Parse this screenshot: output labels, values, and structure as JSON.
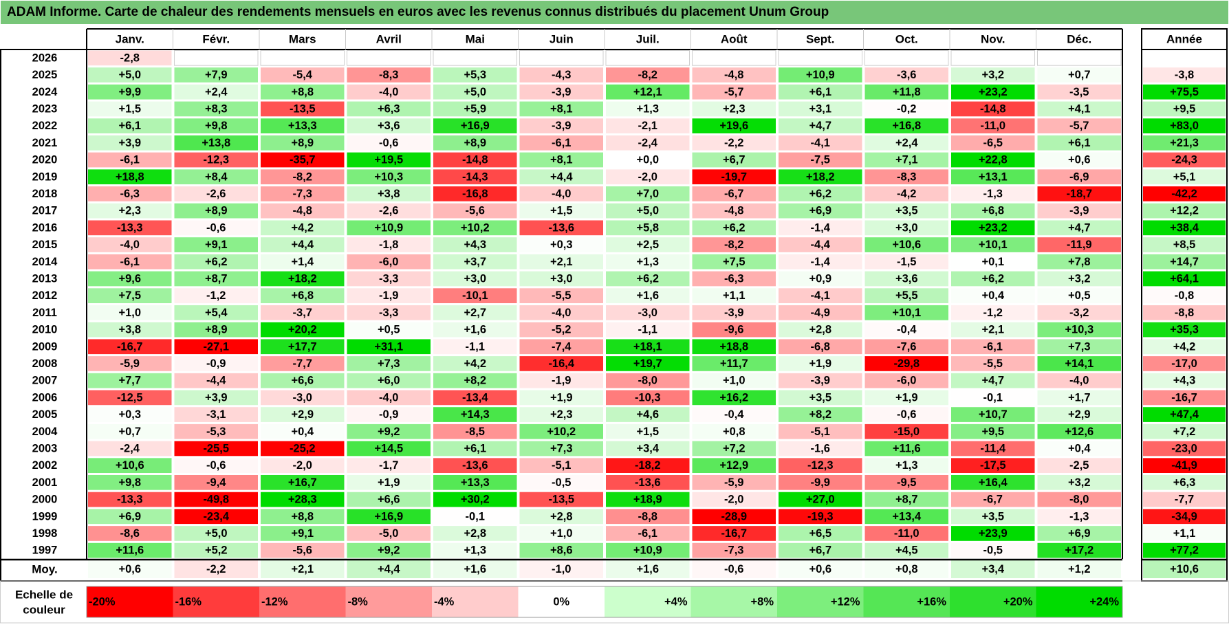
{
  "title": "ADAM Informe. Carte de chaleur des rendements mensuels en euros avec les revenus connus distribués du placement Unum Group",
  "chart_data": {
    "type": "heatmap",
    "title": "ADAM Informe. Carte de chaleur des rendements mensuels en euros avec les revenus connus distribués du placement Unum Group",
    "months": [
      "Janv.",
      "Févr.",
      "Mars",
      "Avril",
      "Mai",
      "Juin",
      "Juil.",
      "Août",
      "Sept.",
      "Oct.",
      "Nov.",
      "Déc."
    ],
    "year_col_label": "Année",
    "avg_label": "Moy.",
    "rows": [
      {
        "year": "2026",
        "values": [
          "-2,8",
          "",
          "",
          "",
          "",
          "",
          "",
          "",
          "",
          "",
          "",
          ""
        ],
        "annual": ""
      },
      {
        "year": "2025",
        "values": [
          "+5,0",
          "+7,9",
          "-5,4",
          "-8,3",
          "+5,3",
          "-4,3",
          "-8,2",
          "-4,8",
          "+10,9",
          "-3,6",
          "+3,2",
          "+0,7"
        ],
        "annual": "-3,8"
      },
      {
        "year": "2024",
        "values": [
          "+9,9",
          "+2,4",
          "+8,8",
          "-4,0",
          "+5,0",
          "-3,9",
          "+12,1",
          "-5,7",
          "+6,1",
          "+11,8",
          "+23,2",
          "-3,5"
        ],
        "annual": "+75,5"
      },
      {
        "year": "2023",
        "values": [
          "+1,5",
          "+8,3",
          "-13,5",
          "+6,3",
          "+5,9",
          "+8,1",
          "+1,3",
          "+2,3",
          "+3,1",
          "-0,2",
          "-14,8",
          "+4,1"
        ],
        "annual": "+9,5"
      },
      {
        "year": "2022",
        "values": [
          "+6,1",
          "+9,8",
          "+13,3",
          "+3,6",
          "+16,9",
          "-3,9",
          "-2,1",
          "+19,6",
          "+4,7",
          "+16,8",
          "-11,0",
          "-5,7"
        ],
        "annual": "+83,0"
      },
      {
        "year": "2021",
        "values": [
          "+3,9",
          "+13,8",
          "+8,9",
          "-0,6",
          "+8,9",
          "-6,1",
          "-2,4",
          "-2,2",
          "-4,1",
          "+2,4",
          "-6,5",
          "+6,1"
        ],
        "annual": "+21,3"
      },
      {
        "year": "2020",
        "values": [
          "-6,1",
          "-12,3",
          "-35,7",
          "+19,5",
          "-14,8",
          "+8,1",
          "+0,0",
          "+6,7",
          "-7,5",
          "+7,1",
          "+22,8",
          "+0,6"
        ],
        "annual": "-24,3"
      },
      {
        "year": "2019",
        "values": [
          "+18,8",
          "+8,4",
          "-8,2",
          "+10,3",
          "-14,3",
          "+4,4",
          "-2,0",
          "-19,7",
          "+18,2",
          "-8,3",
          "+13,1",
          "-6,9"
        ],
        "annual": "+5,1"
      },
      {
        "year": "2018",
        "values": [
          "-6,3",
          "-2,6",
          "-7,3",
          "+3,8",
          "-16,8",
          "-4,0",
          "+7,0",
          "-6,7",
          "+6,2",
          "-4,2",
          "-1,3",
          "-18,7"
        ],
        "annual": "-42,2"
      },
      {
        "year": "2017",
        "values": [
          "+2,3",
          "+8,9",
          "-4,8",
          "-2,6",
          "-5,6",
          "+1,5",
          "+5,0",
          "-4,8",
          "+6,9",
          "+3,5",
          "+6,8",
          "-3,9"
        ],
        "annual": "+12,2"
      },
      {
        "year": "2016",
        "values": [
          "-13,3",
          "-0,6",
          "+4,2",
          "+10,9",
          "+10,2",
          "-13,6",
          "+5,8",
          "+6,2",
          "-1,4",
          "+3,0",
          "+23,2",
          "+4,7"
        ],
        "annual": "+38,4"
      },
      {
        "year": "2015",
        "values": [
          "-4,0",
          "+9,1",
          "+4,4",
          "-1,8",
          "+4,3",
          "+0,3",
          "+2,5",
          "-8,2",
          "-4,4",
          "+10,6",
          "+10,1",
          "-11,9"
        ],
        "annual": "+8,5"
      },
      {
        "year": "2014",
        "values": [
          "-6,1",
          "+6,2",
          "+1,4",
          "-6,0",
          "+3,7",
          "+2,1",
          "+1,3",
          "+7,5",
          "-1,4",
          "-1,5",
          "+0,1",
          "+7,8"
        ],
        "annual": "+14,7"
      },
      {
        "year": "2013",
        "values": [
          "+9,6",
          "+8,7",
          "+18,2",
          "-3,3",
          "+3,0",
          "+3,0",
          "+6,2",
          "-6,3",
          "+0,9",
          "+3,6",
          "+6,2",
          "+3,2"
        ],
        "annual": "+64,1"
      },
      {
        "year": "2012",
        "values": [
          "+7,5",
          "-1,2",
          "+6,8",
          "-1,9",
          "-10,1",
          "-5,5",
          "+1,6",
          "+1,1",
          "-4,1",
          "+5,5",
          "+0,4",
          "+0,5"
        ],
        "annual": "-0,8"
      },
      {
        "year": "2011",
        "values": [
          "+1,0",
          "+5,4",
          "-3,7",
          "-3,3",
          "+2,7",
          "-4,0",
          "-3,0",
          "-3,9",
          "-4,9",
          "+10,1",
          "-1,2",
          "-3,2"
        ],
        "annual": "-8,8"
      },
      {
        "year": "2010",
        "values": [
          "+3,8",
          "+8,9",
          "+20,2",
          "+0,5",
          "+1,6",
          "-5,2",
          "-1,1",
          "-9,6",
          "+2,8",
          "-0,4",
          "+2,1",
          "+10,3"
        ],
        "annual": "+35,3"
      },
      {
        "year": "2009",
        "values": [
          "-16,7",
          "-27,1",
          "+17,7",
          "+31,1",
          "-1,1",
          "-7,4",
          "+18,1",
          "+18,8",
          "-6,8",
          "-7,6",
          "-6,1",
          "+7,3"
        ],
        "annual": "+4,2"
      },
      {
        "year": "2008",
        "values": [
          "-5,9",
          "-0,9",
          "-7,7",
          "+7,3",
          "+4,2",
          "-16,4",
          "+19,7",
          "+11,7",
          "+1,9",
          "-29,8",
          "-5,5",
          "+14,1"
        ],
        "annual": "-17,0"
      },
      {
        "year": "2007",
        "values": [
          "+7,7",
          "-4,4",
          "+6,6",
          "+6,0",
          "+8,2",
          "-1,9",
          "-8,0",
          "+1,0",
          "-3,9",
          "-6,0",
          "+4,7",
          "-4,0"
        ],
        "annual": "+4,3"
      },
      {
        "year": "2006",
        "values": [
          "-12,5",
          "+3,9",
          "-3,0",
          "-4,0",
          "-13,4",
          "+1,9",
          "-10,3",
          "+16,2",
          "+3,5",
          "+1,9",
          "-0,1",
          "+1,7"
        ],
        "annual": "-16,7"
      },
      {
        "year": "2005",
        "values": [
          "+0,3",
          "-3,1",
          "+2,9",
          "-0,9",
          "+14,3",
          "+2,3",
          "+4,6",
          "-0,4",
          "+8,2",
          "-0,6",
          "+10,7",
          "+2,9"
        ],
        "annual": "+47,4"
      },
      {
        "year": "2004",
        "values": [
          "+0,7",
          "-5,3",
          "+0,4",
          "+9,2",
          "-8,5",
          "+10,2",
          "+1,5",
          "+0,8",
          "-5,1",
          "-15,0",
          "+9,5",
          "+12,6"
        ],
        "annual": "+7,2"
      },
      {
        "year": "2003",
        "values": [
          "-2,4",
          "-25,5",
          "-25,2",
          "+14,5",
          "+6,1",
          "+7,3",
          "+3,4",
          "+7,2",
          "-1,6",
          "+11,6",
          "-11,4",
          "+0,4"
        ],
        "annual": "-23,0"
      },
      {
        "year": "2002",
        "values": [
          "+10,6",
          "-0,6",
          "-2,0",
          "-1,7",
          "-13,6",
          "-5,1",
          "-18,2",
          "+12,9",
          "-12,3",
          "+1,3",
          "-17,5",
          "-2,5"
        ],
        "annual": "-41,9"
      },
      {
        "year": "2001",
        "values": [
          "+9,8",
          "-9,4",
          "+16,7",
          "+1,9",
          "+13,3",
          "-0,5",
          "-13,6",
          "-5,9",
          "-9,9",
          "-9,5",
          "+16,4",
          "+3,2"
        ],
        "annual": "+6,3"
      },
      {
        "year": "2000",
        "values": [
          "-13,3",
          "-49,8",
          "+28,3",
          "+6,6",
          "+30,2",
          "-13,5",
          "+18,9",
          "-2,0",
          "+27,0",
          "+8,7",
          "-6,7",
          "-8,0"
        ],
        "annual": "-7,7"
      },
      {
        "year": "1999",
        "values": [
          "+6,9",
          "-23,4",
          "+8,8",
          "+16,9",
          "-0,1",
          "+2,8",
          "-8,8",
          "-28,9",
          "-19,3",
          "+13,4",
          "+3,5",
          "-1,3"
        ],
        "annual": "-34,9"
      },
      {
        "year": "1998",
        "values": [
          "-8,6",
          "+5,0",
          "+9,1",
          "-5,0",
          "+2,8",
          "+1,0",
          "-6,1",
          "-16,7",
          "+6,5",
          "-11,0",
          "+23,9",
          "+6,9"
        ],
        "annual": "+1,1"
      },
      {
        "year": "1997",
        "values": [
          "+11,6",
          "+5,2",
          "-5,6",
          "+9,2",
          "+1,3",
          "+8,6",
          "+10,9",
          "-7,3",
          "+6,7",
          "+4,5",
          "-0,5",
          "+17,2"
        ],
        "annual": "+77,2"
      }
    ],
    "averages": {
      "values": [
        "+0,6",
        "-2,2",
        "+2,1",
        "+4,4",
        "+1,6",
        "-1,0",
        "+1,6",
        "-0,6",
        "+0,6",
        "+0,8",
        "+3,4",
        "+1,2"
      ],
      "annual": "+10,6"
    },
    "scale": {
      "label_line1": "Echelle de",
      "label_line2": "couleur",
      "entries": [
        {
          "label": "-20%",
          "value": -20,
          "color": "#ff0000"
        },
        {
          "label": "-16%",
          "value": -16,
          "color": "#ff3c3c"
        },
        {
          "label": "-12%",
          "value": -12,
          "color": "#ff6e6e"
        },
        {
          "label": "-8%",
          "value": -8,
          "color": "#ff9b9b"
        },
        {
          "label": "-4%",
          "value": -4,
          "color": "#ffcccc"
        },
        {
          "label": "0%",
          "value": 0,
          "color": "#ffffff"
        },
        {
          "label": "+4%",
          "value": 4,
          "color": "#ccffcc"
        },
        {
          "label": "+8%",
          "value": 8,
          "color": "#a7f7a7"
        },
        {
          "label": "+12%",
          "value": 12,
          "color": "#7dee7d"
        },
        {
          "label": "+16%",
          "value": 16,
          "color": "#55e655"
        },
        {
          "label": "+20%",
          "value": 20,
          "color": "#2ee02e"
        },
        {
          "label": "+24%",
          "value": 24,
          "color": "#00dc00"
        }
      ]
    }
  }
}
